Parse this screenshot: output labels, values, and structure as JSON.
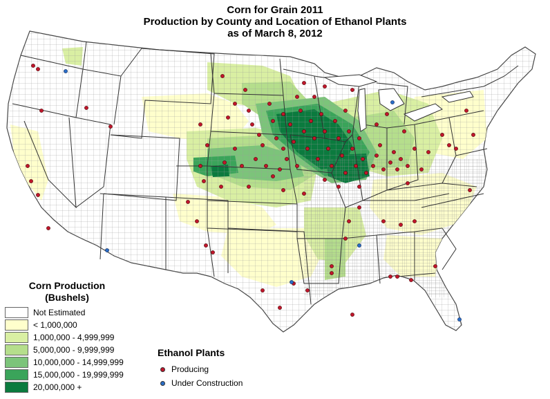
{
  "title": {
    "line1": "Corn for Grain 2011",
    "line2": "Production by County and Location of Ethanol Plants",
    "line3": "as of March 8, 2012"
  },
  "legend": {
    "production_title_line1": "Corn Production",
    "production_title_line2": "(Bushels)",
    "classes": [
      {
        "label": "Not Estimated",
        "color": "#ffffff"
      },
      {
        "label": "< 1,000,000",
        "color": "#ffffcc"
      },
      {
        "label": "1,000,000 - 4,999,999",
        "color": "#d9efa3"
      },
      {
        "label": "5,000,000 - 9,999,999",
        "color": "#b5de8c"
      },
      {
        "label": "10,000,000 - 14,999,999",
        "color": "#7cc47a"
      },
      {
        "label": "15,000,000 - 19,999,999",
        "color": "#3aa45a"
      },
      {
        "label": "20,000,000 +",
        "color": "#0b7a3e"
      }
    ],
    "plants_title": "Ethanol Plants",
    "plants": [
      {
        "label": "Producing",
        "color": "#c0162c"
      },
      {
        "label": "Under Construction",
        "color": "#2a6ec8"
      }
    ]
  }
}
